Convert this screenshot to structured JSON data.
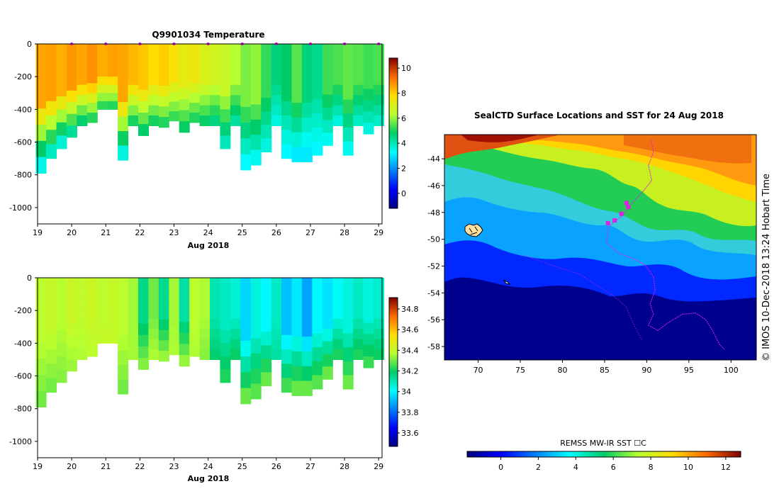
{
  "profile_temp": {
    "title": "Q9901034  Temperature",
    "x_ticks": [
      "19",
      "20",
      "21",
      "22",
      "23",
      "24",
      "25",
      "26",
      "27",
      "28",
      "29"
    ],
    "x_label": "Aug 2018",
    "y_ticks": [
      "0",
      "-200",
      "-400",
      "-600",
      "-800",
      "-1000"
    ],
    "colorbar_ticks": [
      "10",
      "8",
      "6",
      "4",
      "2",
      "0"
    ]
  },
  "profile_sal": {
    "x_ticks": [
      "19",
      "20",
      "21",
      "22",
      "23",
      "24",
      "25",
      "26",
      "27",
      "28",
      "29"
    ],
    "x_label": "Aug 2018",
    "y_ticks": [
      "0",
      "-200",
      "-400",
      "-600",
      "-800",
      "-1000"
    ],
    "colorbar_ticks": [
      "34.8",
      "34.6",
      "34.4",
      "34.2",
      "34",
      "33.8",
      "33.6"
    ]
  },
  "map": {
    "title": "SealCTD Surface Locations and SST for 24 Aug 2018",
    "lon_ticks": [
      "70",
      "75",
      "80",
      "85",
      "90",
      "95",
      "100"
    ],
    "lat_ticks": [
      "-44",
      "-46",
      "-48",
      "-50",
      "-52",
      "-54",
      "-56",
      "-58"
    ],
    "colorbar_label": "REMSS MW-IR SST ☐C",
    "colorbar_ticks": [
      "0",
      "2",
      "4",
      "6",
      "8",
      "10",
      "12"
    ],
    "credit": "©  IMOS 10-Dec-2018 13:24 Hobart Time"
  },
  "colors": {
    "marker": "#e020e0",
    "track": "#e020e0"
  },
  "chart_data": [
    {
      "type": "heatmap",
      "title": "Q9901034  Temperature",
      "xlabel": "Aug 2018",
      "xlim": [
        19,
        29.1
      ],
      "ylim": [
        -1100,
        0
      ],
      "clim": [
        -1.2,
        10.8
      ],
      "x": [
        19.1,
        19.4,
        19.7,
        20.0,
        20.3,
        20.6,
        20.9,
        21.2,
        21.5,
        21.8,
        22.1,
        22.4,
        22.7,
        23.0,
        23.3,
        23.6,
        23.9,
        24.2,
        24.5,
        24.8,
        25.1,
        25.4,
        25.7,
        26.0,
        26.3,
        26.6,
        26.9,
        27.2,
        27.5,
        27.8,
        28.1,
        28.4,
        28.7,
        29.0
      ],
      "max_depth": [
        790,
        700,
        640,
        570,
        500,
        480,
        400,
        400,
        710,
        500,
        560,
        500,
        510,
        470,
        540,
        480,
        500,
        500,
        640,
        500,
        770,
        740,
        660,
        500,
        700,
        720,
        720,
        680,
        620,
        500,
        680,
        500,
        550,
        500
      ],
      "surface_values": [
        8.5,
        8.6,
        8.4,
        8.7,
        8.5,
        8.8,
        8.4,
        8.6,
        8.5,
        8.3,
        8.1,
        7.8,
        8.0,
        7.6,
        7.2,
        7.4,
        7.0,
        6.8,
        6.6,
        6.3,
        5.8,
        6.0,
        5.2,
        4.6,
        4.8,
        5.5,
        4.6,
        4.4,
        5.3,
        5.4,
        5.6,
        5.5,
        5.3,
        5.4
      ],
      "deep_values": [
        3.4,
        3.8,
        3.6,
        4.2,
        4.6,
        5.0,
        5.1,
        5.0,
        3.5,
        4.9,
        4.7,
        4.9,
        5.0,
        5.2,
        4.8,
        5.0,
        4.8,
        4.5,
        3.9,
        4.2,
        3.2,
        3.4,
        3.6,
        3.6,
        3.2,
        3.0,
        3.0,
        3.2,
        3.4,
        3.6,
        3.4,
        3.8,
        3.6,
        3.8
      ],
      "sample_times": [
        20.0,
        21.0,
        22.0,
        23.0,
        24.0,
        25.0,
        26.0,
        27.0,
        28.0,
        29.0
      ]
    },
    {
      "type": "heatmap",
      "xlabel": "Aug 2018",
      "xlim": [
        19,
        29.1
      ],
      "ylim": [
        -1100,
        0
      ],
      "clim": [
        33.47,
        34.91
      ],
      "x": [
        19.1,
        19.4,
        19.7,
        20.0,
        20.3,
        20.6,
        20.9,
        21.2,
        21.5,
        21.8,
        22.1,
        22.4,
        22.7,
        23.0,
        23.3,
        23.6,
        23.9,
        24.2,
        24.5,
        24.8,
        25.1,
        25.4,
        25.7,
        26.0,
        26.3,
        26.6,
        26.9,
        27.2,
        27.5,
        27.8,
        28.1,
        28.4,
        28.7,
        29.0
      ],
      "max_depth": [
        790,
        700,
        640,
        570,
        500,
        480,
        400,
        400,
        710,
        500,
        560,
        500,
        510,
        470,
        540,
        480,
        500,
        500,
        640,
        500,
        770,
        740,
        660,
        500,
        700,
        720,
        720,
        680,
        620,
        500,
        680,
        500,
        550,
        500
      ],
      "surface_values": [
        34.38,
        34.4,
        34.37,
        34.41,
        34.39,
        34.42,
        34.38,
        34.4,
        34.38,
        34.35,
        34.15,
        34.3,
        34.14,
        34.35,
        34.12,
        34.38,
        34.36,
        34.1,
        34.08,
        34.06,
        33.95,
        34.05,
        34.0,
        34.08,
        33.92,
        33.98,
        33.88,
        34.0,
        33.97,
        34.02,
        34.05,
        34.08,
        34.05,
        34.07
      ],
      "deep_values": [
        34.3,
        34.3,
        34.32,
        34.34,
        34.36,
        34.38,
        34.4,
        34.4,
        34.3,
        34.35,
        34.32,
        34.36,
        34.34,
        34.36,
        34.34,
        34.36,
        34.32,
        34.18,
        34.22,
        34.2,
        34.3,
        34.28,
        34.3,
        34.12,
        34.26,
        34.3,
        34.3,
        34.28,
        34.3,
        34.22,
        34.3,
        34.22,
        34.25,
        34.2
      ]
    },
    {
      "type": "heatmap",
      "title": "SealCTD Surface Locations and SST for 24 Aug 2018",
      "xlim": [
        66,
        103
      ],
      "ylim": [
        -59,
        -42.2
      ],
      "clim": [
        -1.8,
        12.8
      ],
      "colorbar_label": "REMSS MW-IR SST ☐C",
      "surface_locations": [
        {
          "lon": 85.4,
          "lat": -48.8
        },
        {
          "lon": 86.2,
          "lat": -48.6
        },
        {
          "lon": 87.0,
          "lat": -48.1
        },
        {
          "lon": 87.8,
          "lat": -47.6
        },
        {
          "lon": 87.6,
          "lat": -47.3
        }
      ],
      "track_lonlat": [
        [
          90.5,
          -42.6
        ],
        [
          90.8,
          -43.5
        ],
        [
          90.2,
          -44.5
        ],
        [
          90.6,
          -45.6
        ],
        [
          89.6,
          -46.4
        ],
        [
          88.4,
          -47.2
        ],
        [
          87.2,
          -48.2
        ],
        [
          86.0,
          -48.8
        ],
        [
          85.4,
          -49.2
        ],
        [
          85.2,
          -50.2
        ],
        [
          86.5,
          -51.0
        ],
        [
          88.2,
          -51.4
        ],
        [
          89.8,
          -51.9
        ],
        [
          90.8,
          -52.8
        ],
        [
          91.0,
          -53.8
        ],
        [
          90.4,
          -54.8
        ],
        [
          90.8,
          -55.6
        ],
        [
          90.2,
          -56.4
        ],
        [
          91.3,
          -56.8
        ],
        [
          92.6,
          -56.2
        ],
        [
          94.2,
          -55.6
        ],
        [
          95.8,
          -55.5
        ],
        [
          97.0,
          -56.0
        ],
        [
          97.8,
          -56.8
        ],
        [
          98.6,
          -57.8
        ],
        [
          99.2,
          -58.2
        ]
      ],
      "track2_lonlat": [
        [
          75.5,
          -51.2
        ],
        [
          79.0,
          -52.0
        ],
        [
          82.0,
          -52.6
        ],
        [
          84.0,
          -53.4
        ],
        [
          86.0,
          -54.2
        ],
        [
          87.5,
          -55.0
        ],
        [
          88.5,
          -56.4
        ],
        [
          89.5,
          -57.6
        ]
      ]
    }
  ]
}
